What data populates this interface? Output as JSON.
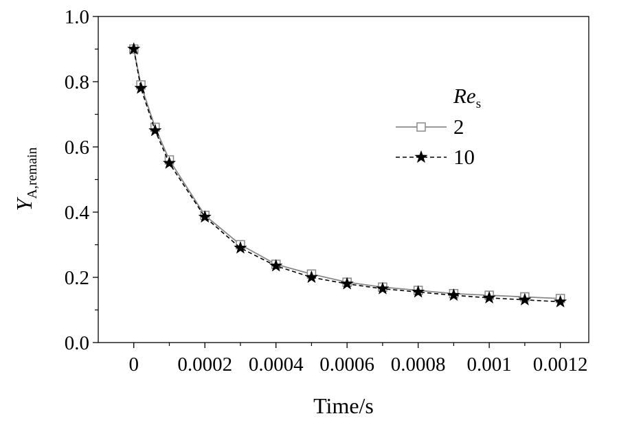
{
  "chart_data": {
    "type": "line",
    "title": "",
    "xlabel": "Time/s",
    "ylabel": {
      "main": "Y",
      "sub": "A,remain"
    },
    "xlim": [
      -0.0001,
      0.00128
    ],
    "ylim": [
      0.0,
      1.0
    ],
    "x_ticks": [
      0,
      0.0002,
      0.0004,
      0.0006,
      0.0008,
      0.001,
      0.0012
    ],
    "x_tick_labels": [
      "0",
      "0.0002",
      "0.0004",
      "0.0006",
      "0.0008",
      "0.001",
      "0.0012"
    ],
    "y_ticks": [
      0.0,
      0.2,
      0.4,
      0.6,
      0.8,
      1.0
    ],
    "y_tick_labels": [
      "0.0",
      "0.2",
      "0.4",
      "0.6",
      "0.8",
      "1.0"
    ],
    "grid": false,
    "legend": {
      "title_main": "Re",
      "title_sub": "s",
      "placement": "right"
    },
    "series": [
      {
        "name": "2",
        "marker": "square",
        "line": "solid",
        "color": "#888888",
        "x": [
          0,
          2e-05,
          6e-05,
          0.0001,
          0.0002,
          0.0003,
          0.0004,
          0.0005,
          0.0006,
          0.0007,
          0.0008,
          0.0009,
          0.001,
          0.0011,
          0.0012
        ],
        "y": [
          0.9,
          0.79,
          0.66,
          0.56,
          0.39,
          0.3,
          0.24,
          0.21,
          0.185,
          0.17,
          0.16,
          0.15,
          0.145,
          0.14,
          0.135
        ]
      },
      {
        "name": "10",
        "marker": "star",
        "line": "dashed",
        "color": "#000000",
        "x": [
          0,
          2e-05,
          6e-05,
          0.0001,
          0.0002,
          0.0003,
          0.0004,
          0.0005,
          0.0006,
          0.0007,
          0.0008,
          0.0009,
          0.001,
          0.0011,
          0.0012
        ],
        "y": [
          0.9,
          0.78,
          0.65,
          0.55,
          0.385,
          0.29,
          0.235,
          0.2,
          0.18,
          0.165,
          0.155,
          0.145,
          0.137,
          0.131,
          0.125
        ]
      }
    ]
  }
}
